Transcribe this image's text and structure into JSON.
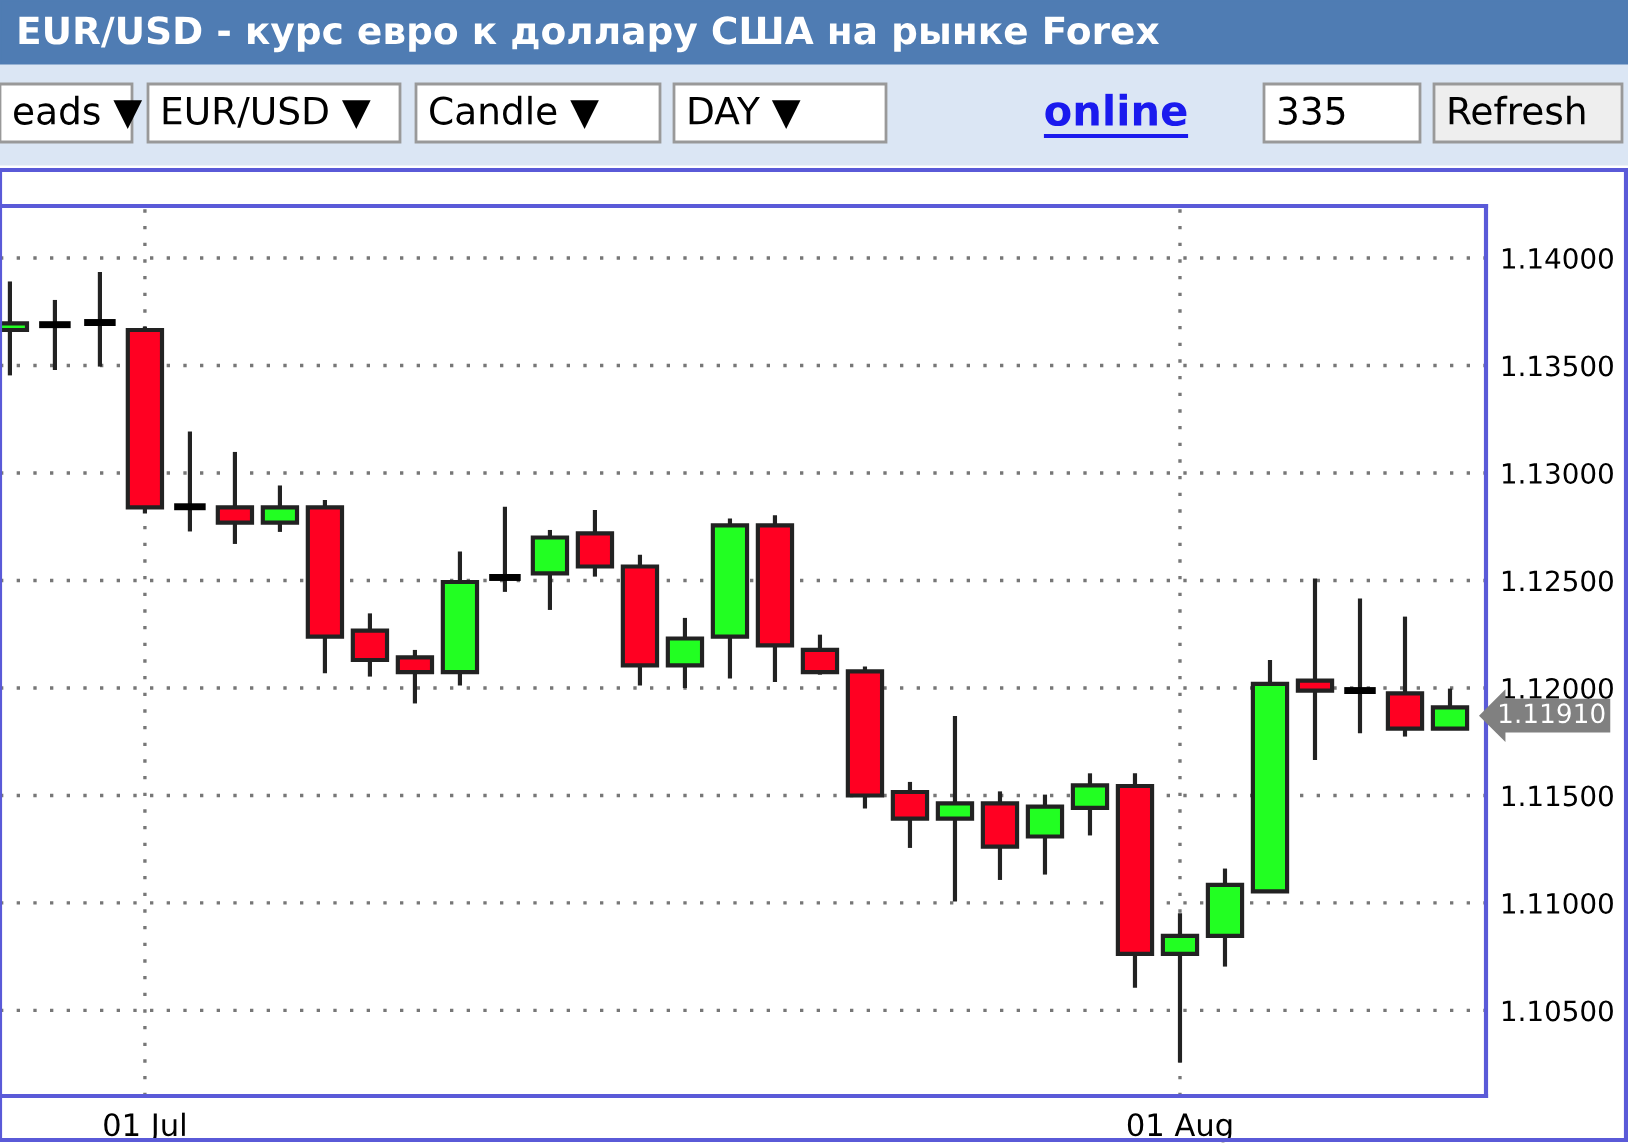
{
  "chart_data": {
    "type": "candlestick",
    "title": "EUR/USD - курс евро к доллару США на рынке Forex",
    "categories": [
      null,
      null,
      null,
      "01 Jul",
      null,
      null,
      null,
      null,
      null,
      null,
      null,
      null,
      null,
      null,
      null,
      null,
      null,
      null,
      null,
      null,
      null,
      null,
      null,
      null,
      null,
      null,
      "01 Aug",
      null,
      null,
      null,
      null,
      null,
      null
    ],
    "ohlc": [
      [
        1.13665,
        1.13891,
        1.13454,
        1.13696
      ],
      [
        1.1369,
        1.13805,
        1.13479,
        1.1369
      ],
      [
        1.137,
        1.13935,
        1.13495,
        1.137
      ],
      [
        1.13665,
        1.1368,
        1.12812,
        1.1284
      ],
      [
        1.12843,
        1.13193,
        1.12728,
        1.12843
      ],
      [
        1.1284,
        1.13098,
        1.1267,
        1.12769
      ],
      [
        1.12769,
        1.12942,
        1.12726,
        1.1284
      ],
      [
        1.1284,
        1.12874,
        1.12068,
        1.12239
      ],
      [
        1.12267,
        1.12347,
        1.12053,
        1.1213
      ],
      [
        1.12142,
        1.12177,
        1.11928,
        1.12074
      ],
      [
        1.12074,
        1.12635,
        1.12012,
        1.12493
      ],
      [
        1.12514,
        1.12843,
        1.12447,
        1.12514
      ],
      [
        1.12533,
        1.12735,
        1.12363,
        1.127
      ],
      [
        1.12719,
        1.12828,
        1.12518,
        1.12565
      ],
      [
        1.12565,
        1.1262,
        1.12012,
        1.12105
      ],
      [
        1.12105,
        1.12326,
        1.12,
        1.1223
      ],
      [
        1.12239,
        1.12788,
        1.12044,
        1.12756
      ],
      [
        1.12756,
        1.12803,
        1.12028,
        1.12198
      ],
      [
        1.12177,
        1.12248,
        1.12062,
        1.12074
      ],
      [
        1.12077,
        1.121,
        1.11439,
        1.115
      ],
      [
        1.11516,
        1.11563,
        1.11256,
        1.11392
      ],
      [
        1.11392,
        1.1187,
        1.11007,
        1.11463
      ],
      [
        1.11463,
        1.11519,
        1.11107,
        1.11262
      ],
      [
        1.11309,
        1.11504,
        1.11132,
        1.11448
      ],
      [
        1.11442,
        1.11603,
        1.11314,
        1.11547
      ],
      [
        1.11544,
        1.11603,
        1.10605,
        1.10763
      ],
      [
        1.10763,
        1.10952,
        1.10258,
        1.10847
      ],
      [
        1.10847,
        1.1116,
        1.10704,
        1.11084
      ],
      [
        1.11054,
        1.1213,
        1.11054,
        1.12019
      ],
      [
        1.12034,
        1.12509,
        1.11665,
        1.11988
      ],
      [
        1.11988,
        1.12416,
        1.11789,
        1.11988
      ],
      [
        1.11975,
        1.12332,
        1.11774,
        1.11811
      ],
      [
        1.11811,
        1.11997,
        1.11811,
        1.1191
      ]
    ],
    "colors": [
      "#22ff22",
      "#000000",
      "#000000",
      "#ff0022",
      "#000000",
      "#ff0022",
      "#22ff22",
      "#ff0022",
      "#ff0022",
      "#ff0022",
      "#22ff22",
      "#000000",
      "#22ff22",
      "#ff0022",
      "#ff0022",
      "#22ff22",
      "#22ff22",
      "#ff0022",
      "#ff0022",
      "#ff0022",
      "#ff0022",
      "#22ff22",
      "#ff0022",
      "#22ff22",
      "#22ff22",
      "#ff0022",
      "#22ff22",
      "#22ff22",
      "#22ff22",
      "#ff0022",
      "#000000",
      "#ff0022",
      "#22ff22"
    ],
    "ylim": [
      1.10102,
      1.14242
    ],
    "yticks": [
      {
        "value": 1.105,
        "label": "1.10500"
      },
      {
        "value": 1.11,
        "label": "1.11000"
      },
      {
        "value": 1.115,
        "label": "1.11500"
      },
      {
        "value": 1.12,
        "label": "1.12000"
      },
      {
        "value": 1.125,
        "label": "1.12500"
      },
      {
        "value": 1.13,
        "label": "1.13000"
      },
      {
        "value": 1.135,
        "label": "1.13500"
      },
      {
        "value": 1.14,
        "label": "1.14000"
      }
    ],
    "grid": true,
    "annotations": [
      "eads ▼",
      "EUR/USD ▼",
      "Candle ▼",
      "DAY ▼",
      "online",
      "335",
      "Refresh",
      "1.11910"
    ]
  }
}
